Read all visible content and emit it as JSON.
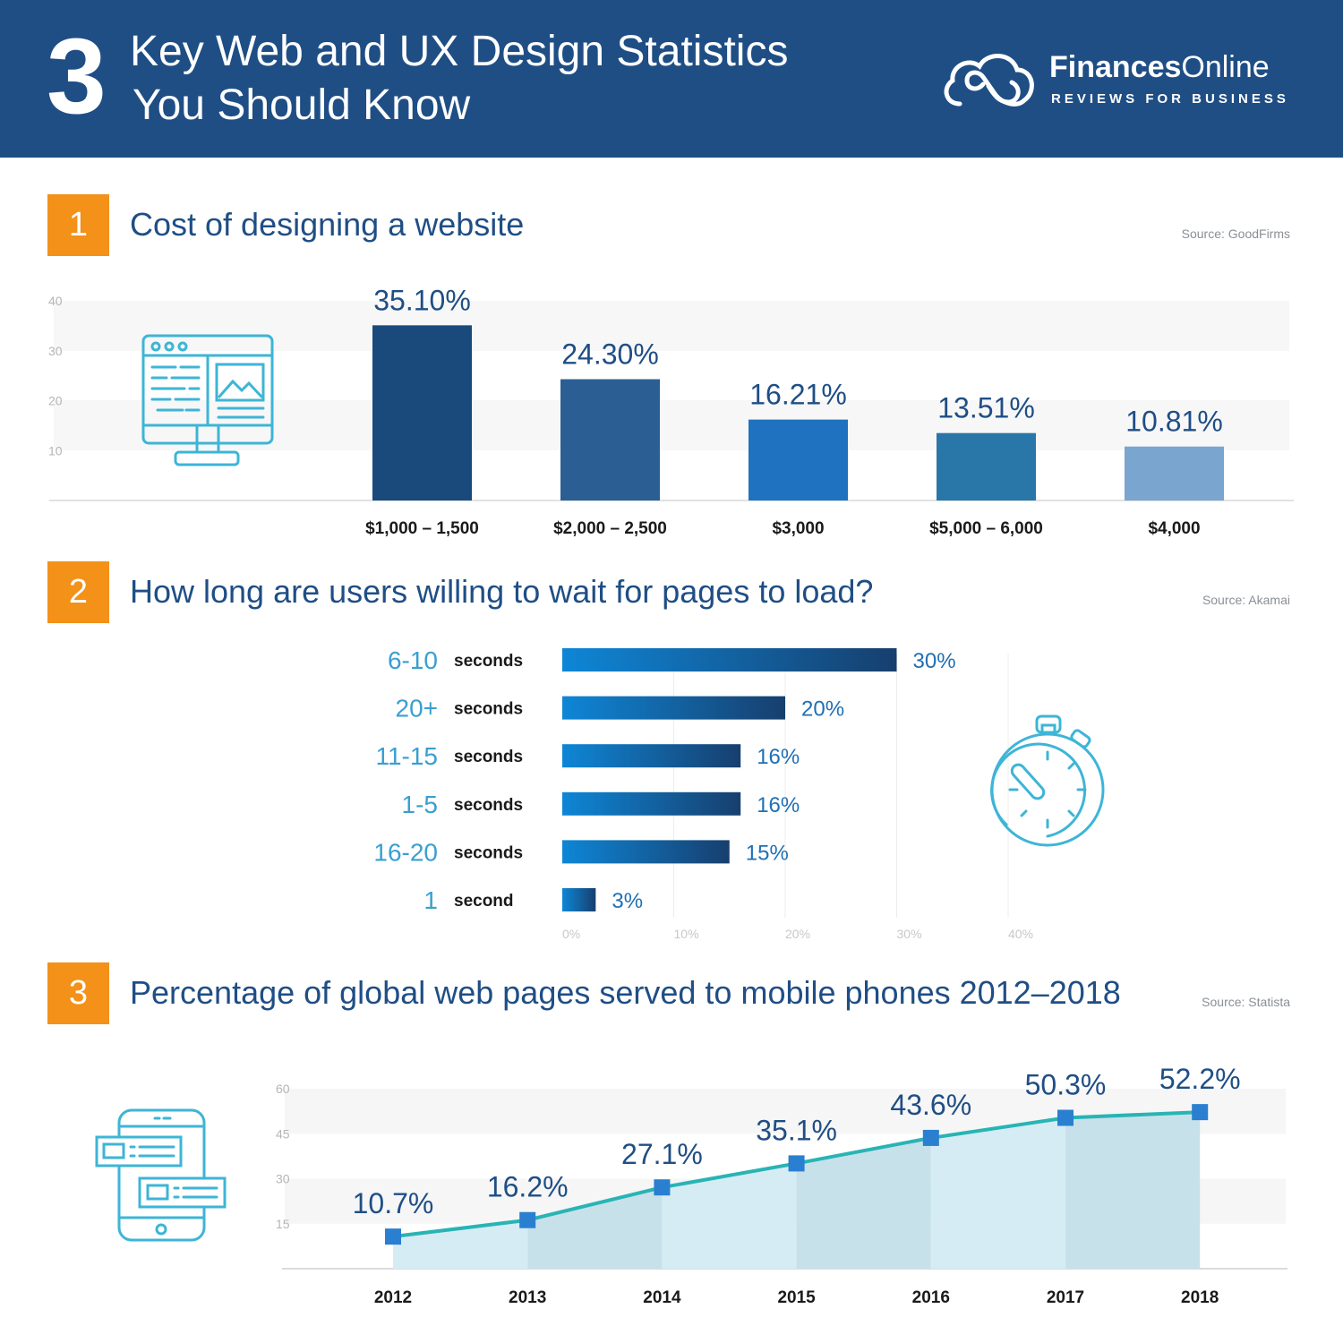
{
  "header": {
    "number": "3",
    "title_line1": "Key Web and UX Design Statistics",
    "title_line2": "You Should Know",
    "brand_bold": "Finances",
    "brand_light": "Online",
    "tagline": "REVIEWS FOR BUSINESS"
  },
  "sections": [
    {
      "number": "1",
      "title": "Cost of designing a website",
      "source": "Source: GoodFirms"
    },
    {
      "number": "2",
      "title": "How long are users willing to wait for pages to load?",
      "source": "Source: Akamai"
    },
    {
      "number": "3",
      "title": "Percentage of global web pages served to mobile phones 2012–2018",
      "source": "Source: Statista"
    }
  ],
  "colors": {
    "header_bg": "#1f4e85",
    "accent_orange": "#f39119",
    "title_blue": "#1f4e85",
    "icon_cyan": "#3db5d6",
    "line_teal": "#29b4b4",
    "marker_blue": "#2a7fd0"
  },
  "chart_data": [
    {
      "type": "bar",
      "title": "Cost of designing a website",
      "categories": [
        "$1,000 – 1,500",
        "$2,000 – 2,500",
        "$3,000",
        "$5,000 – 6,000",
        "$4,000"
      ],
      "values": [
        35.1,
        24.3,
        16.21,
        13.51,
        10.81
      ],
      "value_labels": [
        "35.10%",
        "24.30%",
        "16.21%",
        "13.51%",
        "10.81%"
      ],
      "bar_colors": [
        "#1a4a7c",
        "#2b5f93",
        "#1f72bf",
        "#2977a8",
        "#7aa5cf"
      ],
      "yticks": [
        "10",
        "20",
        "30",
        "40"
      ],
      "ylim": [
        0,
        40
      ],
      "xlabel": "",
      "ylabel": ""
    },
    {
      "type": "bar",
      "orientation": "horizontal",
      "title": "How long are users willing to wait for pages to load?",
      "categories": [
        {
          "num": "6-10",
          "unit": "seconds"
        },
        {
          "num": "20+",
          "unit": "seconds"
        },
        {
          "num": "11-15",
          "unit": "seconds"
        },
        {
          "num": "1-5",
          "unit": "seconds"
        },
        {
          "num": "16-20",
          "unit": "seconds"
        },
        {
          "num": "1",
          "unit": "second"
        }
      ],
      "values": [
        30,
        20,
        16,
        16,
        15,
        3
      ],
      "value_labels": [
        "30%",
        "20%",
        "16%",
        "16%",
        "15%",
        "3%"
      ],
      "xticks": [
        "0%",
        "10%",
        "20%",
        "30%",
        "40%"
      ],
      "xlim": [
        0,
        40
      ]
    },
    {
      "type": "area",
      "title": "Percentage of global web pages served to mobile phones 2012–2018",
      "x": [
        "2012",
        "2013",
        "2014",
        "2015",
        "2016",
        "2017",
        "2018"
      ],
      "values": [
        10.7,
        16.2,
        27.1,
        35.1,
        43.6,
        50.3,
        52.2
      ],
      "value_labels": [
        "10.7%",
        "16.2%",
        "27.1%",
        "35.1%",
        "43.6%",
        "50.3%",
        "52.2%"
      ],
      "yticks": [
        "15",
        "30",
        "45",
        "60"
      ],
      "ylim": [
        0,
        60
      ]
    }
  ]
}
